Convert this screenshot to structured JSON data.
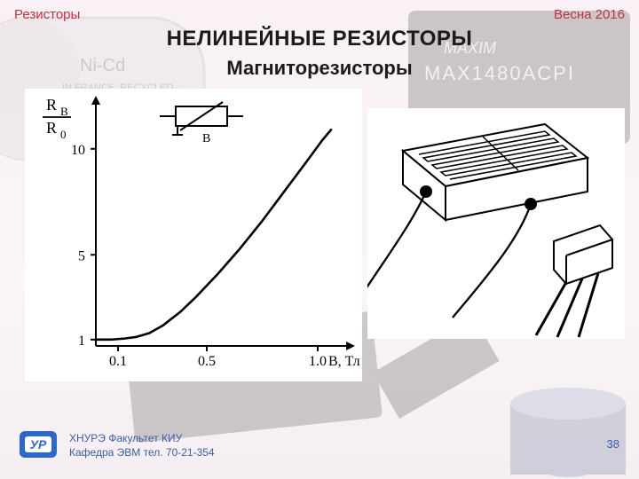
{
  "header": {
    "left": "Резисторы",
    "right": "Весна 2016"
  },
  "title": "НЕЛИНЕЙНЫЕ РЕЗИСТОРЫ",
  "subtitle": "Магниторезисторы",
  "page_number": "38",
  "footer": {
    "line1": "ХНУРЭ Факультет КИУ",
    "line2": "Кафедра ЭВМ   тел. 70-21-354"
  },
  "logo_text": "УР",
  "chart": {
    "type": "line",
    "y_axis_label_top": "R",
    "y_axis_label_sub_top": "B",
    "y_axis_label_bottom": "R",
    "y_axis_label_sub_bottom": "0",
    "x_axis_label": "В, Тл",
    "symbol_label": "B",
    "y_ticks": [
      1,
      5,
      10
    ],
    "y_tick_labels": [
      "1",
      "5",
      "10"
    ],
    "x_ticks": [
      0.1,
      0.5,
      1.0
    ],
    "x_tick_labels": [
      "0.1",
      "0.5",
      "1.0"
    ],
    "xlim": [
      0,
      1.12
    ],
    "ylim": [
      0.7,
      12
    ],
    "curve": [
      [
        0.0,
        1.0
      ],
      [
        0.07,
        1.0
      ],
      [
        0.13,
        1.05
      ],
      [
        0.18,
        1.12
      ],
      [
        0.24,
        1.3
      ],
      [
        0.3,
        1.65
      ],
      [
        0.38,
        2.3
      ],
      [
        0.45,
        3.0
      ],
      [
        0.55,
        4.1
      ],
      [
        0.65,
        5.3
      ],
      [
        0.75,
        6.6
      ],
      [
        0.85,
        8.0
      ],
      [
        0.95,
        9.4
      ],
      [
        1.02,
        10.4
      ],
      [
        1.06,
        10.9
      ]
    ],
    "line_color": "#000000",
    "line_width": 2.6,
    "axis_color": "#000000",
    "font_size": 16,
    "background_color": "#ffffff"
  },
  "diagram": {
    "type": "infographic",
    "background_color": "#ffffff",
    "line_color": "#000000"
  },
  "bg": {
    "battery_fill": "#d9d9d9",
    "battery_outline": "#9a9a9a",
    "chip_fill": "#333333",
    "cap_color": "#6d7ea7",
    "text_on_chip": "MAX1480ACPI",
    "text_on_chip2": "MAXIM"
  }
}
